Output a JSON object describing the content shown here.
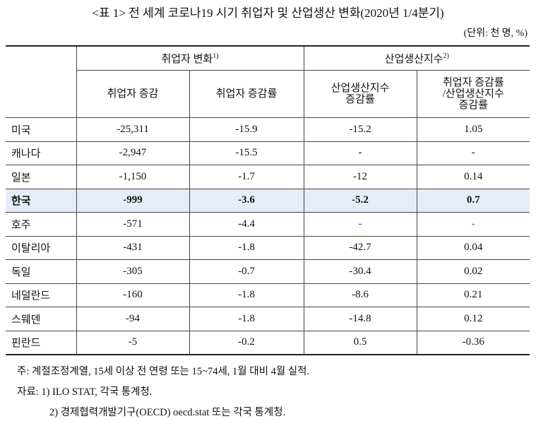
{
  "header": {
    "title": "<표 1> 전 세계 코로나19 시기 취업자 및 산업생산 변화(2020년 1/4분기)",
    "unit": "(단위: 천 명, %)"
  },
  "table": {
    "groups": [
      {
        "label": "취업자 변화",
        "note": "1)"
      },
      {
        "label": "산업생산지수",
        "note": "2)"
      }
    ],
    "columns": [
      [
        "취업자 증감"
      ],
      [
        "취업자 증감률"
      ],
      [
        "산업생산지수",
        "증감률"
      ],
      [
        "취업자 증감률",
        "/산업생산지수",
        "증감률"
      ]
    ],
    "rows": [
      [
        "미국",
        "-25,311",
        "-15.9",
        "-15.2",
        "1.05"
      ],
      [
        "캐나다",
        "-2,947",
        "-15.5",
        "-",
        "-"
      ],
      [
        "일본",
        "-1,150",
        "-1.7",
        "-12",
        "0.14"
      ],
      [
        "한국",
        "-999",
        "-3.6",
        "-5.2",
        "0.7"
      ],
      [
        "호주",
        "-571",
        "-4.4",
        "-",
        "-"
      ],
      [
        "이탈리아",
        "-431",
        "-1.8",
        "-42.7",
        "0.04"
      ],
      [
        "독일",
        "-305",
        "-0.7",
        "-30.4",
        "0.02"
      ],
      [
        "네덜란드",
        "-160",
        "-1.8",
        "-8.6",
        "0.21"
      ],
      [
        "스웨덴",
        "-94",
        "-1.8",
        "-14.8",
        "0.12"
      ],
      [
        "핀란드",
        "-5",
        "-0.2",
        "0.5",
        "-0.36"
      ]
    ]
  },
  "notes": [
    "주: 계절조정계열, 15세 이상 전 연령 또는 15~74세, 1월 대비 4월 실적.",
    "자료: 1) ILO STAT, 각국 통계청.",
    "2) 경제협력개발기구(OECD) oecd.stat 또는 각국 통계청."
  ]
}
